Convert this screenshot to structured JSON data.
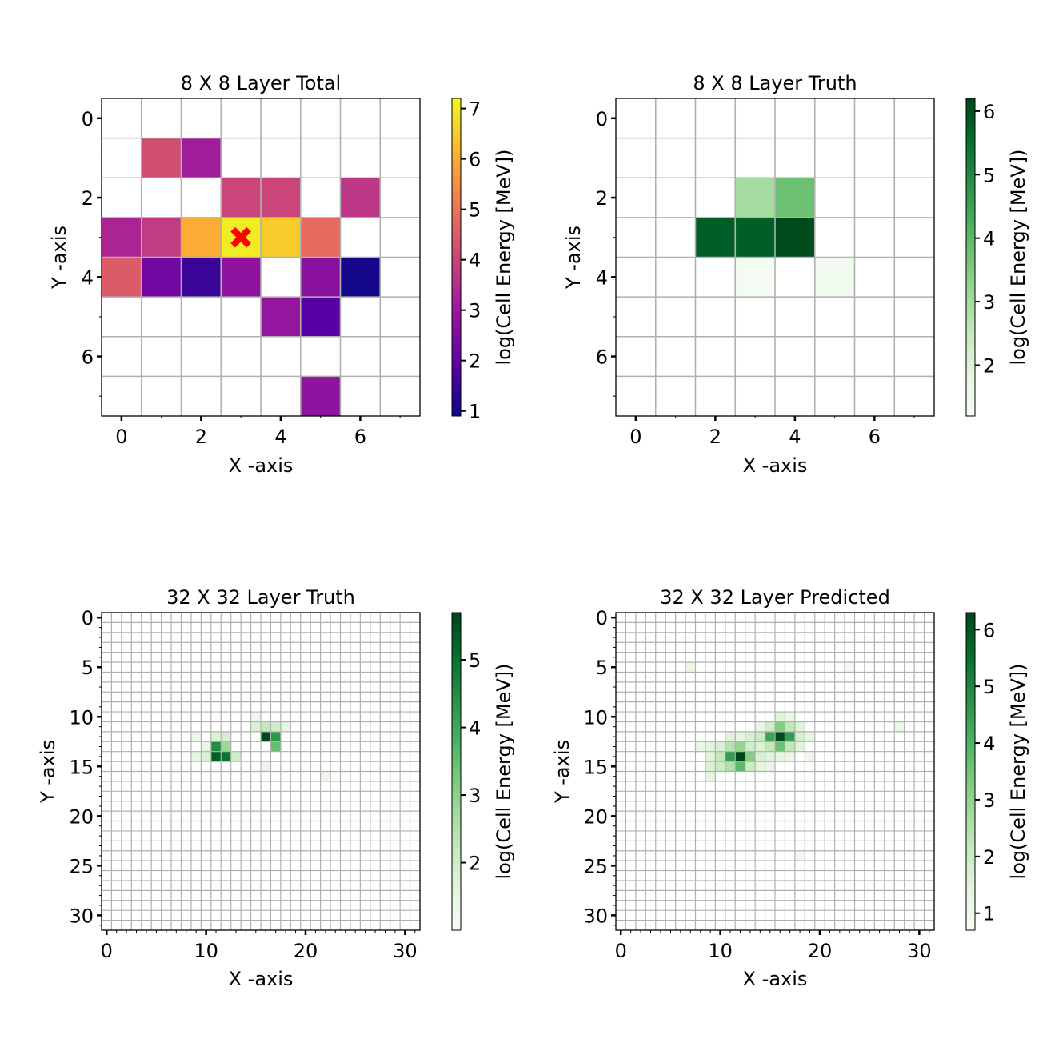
{
  "figure": {
    "colorbar_label": "log(Cell Energy [MeV])"
  },
  "chart_data": [
    {
      "type": "heatmap",
      "title": "8 X 8 Layer Total",
      "xlabel": "X -axis",
      "ylabel": "Y -axis",
      "grid_size": 8,
      "xticks": [
        0,
        2,
        4,
        6
      ],
      "yticks": [
        0,
        2,
        4,
        6
      ],
      "colormap": "plasma",
      "colormap_stops": [
        "#0d0887",
        "#5c01a6",
        "#9c179e",
        "#cc4778",
        "#ed7953",
        "#fdb42f",
        "#f0f921"
      ],
      "colorbar": {
        "min": 0.9,
        "max": 7.2,
        "ticks": [
          1,
          2,
          3,
          4,
          5,
          6,
          7
        ]
      },
      "grid": true,
      "marker": {
        "x": 3,
        "y": 3,
        "symbol": "X",
        "color": "#ff0000"
      },
      "cells": [
        {
          "x": 1,
          "y": 1,
          "value": 4.2
        },
        {
          "x": 2,
          "y": 1,
          "value": 3.1
        },
        {
          "x": 3,
          "y": 2,
          "value": 4.0
        },
        {
          "x": 4,
          "y": 2,
          "value": 4.0
        },
        {
          "x": 6,
          "y": 2,
          "value": 3.7
        },
        {
          "x": 0,
          "y": 3,
          "value": 3.3
        },
        {
          "x": 1,
          "y": 3,
          "value": 3.8
        },
        {
          "x": 2,
          "y": 3,
          "value": 6.0
        },
        {
          "x": 3,
          "y": 3,
          "value": 7.0
        },
        {
          "x": 4,
          "y": 3,
          "value": 6.5
        },
        {
          "x": 5,
          "y": 3,
          "value": 4.8
        },
        {
          "x": 0,
          "y": 4,
          "value": 4.5
        },
        {
          "x": 1,
          "y": 4,
          "value": 2.3
        },
        {
          "x": 2,
          "y": 4,
          "value": 1.5
        },
        {
          "x": 3,
          "y": 4,
          "value": 2.8
        },
        {
          "x": 5,
          "y": 4,
          "value": 2.7
        },
        {
          "x": 6,
          "y": 4,
          "value": 1.0
        },
        {
          "x": 4,
          "y": 5,
          "value": 2.9
        },
        {
          "x": 5,
          "y": 5,
          "value": 1.9
        },
        {
          "x": 5,
          "y": 7,
          "value": 2.8
        }
      ]
    },
    {
      "type": "heatmap",
      "title": "8 X 8 Layer Truth",
      "xlabel": "X -axis",
      "ylabel": "Y -axis",
      "grid_size": 8,
      "xticks": [
        0,
        2,
        4,
        6
      ],
      "yticks": [
        0,
        2,
        4,
        6
      ],
      "colormap": "Greens",
      "colormap_stops": [
        "#f7fcf5",
        "#e5f5e0",
        "#c7e9c0",
        "#a1d99b",
        "#74c476",
        "#41ab5d",
        "#238b45",
        "#006d2c",
        "#00441b"
      ],
      "colorbar": {
        "min": 1.2,
        "max": 6.2,
        "ticks": [
          2,
          3,
          4,
          5,
          6
        ]
      },
      "grid": true,
      "cells": [
        {
          "x": 3,
          "y": 2,
          "value": 3.0
        },
        {
          "x": 4,
          "y": 2,
          "value": 3.8
        },
        {
          "x": 2,
          "y": 3,
          "value": 5.8
        },
        {
          "x": 3,
          "y": 3,
          "value": 5.8
        },
        {
          "x": 4,
          "y": 3,
          "value": 6.1
        },
        {
          "x": 3,
          "y": 4,
          "value": 1.3
        },
        {
          "x": 5,
          "y": 4,
          "value": 1.4
        }
      ]
    },
    {
      "type": "heatmap",
      "title": "32 X 32 Layer Truth",
      "xlabel": "X -axis",
      "ylabel": "Y -axis",
      "grid_size": 32,
      "xticks": [
        0,
        10,
        20,
        30
      ],
      "yticks": [
        0,
        5,
        10,
        15,
        20,
        25,
        30
      ],
      "colormap": "Greens",
      "colormap_stops": [
        "#f7fcf5",
        "#e5f5e0",
        "#c7e9c0",
        "#a1d99b",
        "#74c476",
        "#41ab5d",
        "#238b45",
        "#006d2c",
        "#00441b"
      ],
      "colorbar": {
        "min": 1.0,
        "max": 5.7,
        "ticks": [
          2,
          3,
          4,
          5
        ]
      },
      "grid": true,
      "cells": [
        {
          "x": 15,
          "y": 10,
          "value": 1.3
        },
        {
          "x": 15,
          "y": 11,
          "value": 1.8
        },
        {
          "x": 16,
          "y": 11,
          "value": 2.2
        },
        {
          "x": 17,
          "y": 11,
          "value": 2.0
        },
        {
          "x": 18,
          "y": 11,
          "value": 1.5
        },
        {
          "x": 9,
          "y": 12,
          "value": 1.3
        },
        {
          "x": 11,
          "y": 12,
          "value": 1.8
        },
        {
          "x": 12,
          "y": 12,
          "value": 1.9
        },
        {
          "x": 16,
          "y": 12,
          "value": 5.6
        },
        {
          "x": 17,
          "y": 12,
          "value": 4.3
        },
        {
          "x": 10,
          "y": 13,
          "value": 1.5
        },
        {
          "x": 11,
          "y": 13,
          "value": 4.5
        },
        {
          "x": 12,
          "y": 13,
          "value": 2.8
        },
        {
          "x": 17,
          "y": 13,
          "value": 3.5
        },
        {
          "x": 9,
          "y": 14,
          "value": 1.5
        },
        {
          "x": 10,
          "y": 14,
          "value": 1.8
        },
        {
          "x": 11,
          "y": 14,
          "value": 5.3
        },
        {
          "x": 12,
          "y": 14,
          "value": 5.0
        },
        {
          "x": 13,
          "y": 14,
          "value": 2.0
        },
        {
          "x": 16,
          "y": 15,
          "value": 1.4
        },
        {
          "x": 22,
          "y": 16,
          "value": 1.3
        }
      ]
    },
    {
      "type": "heatmap",
      "title": "32 X 32 Layer Predicted",
      "xlabel": "X -axis",
      "ylabel": "Y -axis",
      "grid_size": 32,
      "xticks": [
        0,
        10,
        20,
        30
      ],
      "yticks": [
        0,
        5,
        10,
        15,
        20,
        25,
        30
      ],
      "colormap": "Greens",
      "colormap_stops": [
        "#f7fcf5",
        "#e5f5e0",
        "#c7e9c0",
        "#a1d99b",
        "#74c476",
        "#41ab5d",
        "#238b45",
        "#006d2c",
        "#00441b"
      ],
      "colorbar": {
        "min": 0.7,
        "max": 6.3,
        "ticks": [
          1,
          2,
          3,
          4,
          5,
          6
        ]
      },
      "grid": true,
      "cells": [
        {
          "x": 7,
          "y": 5,
          "value": 1.2
        },
        {
          "x": 23,
          "y": 5,
          "value": 0.9
        },
        {
          "x": 16,
          "y": 10,
          "value": 1.5
        },
        {
          "x": 17,
          "y": 10,
          "value": 1.2
        },
        {
          "x": 14,
          "y": 11,
          "value": 1.3
        },
        {
          "x": 15,
          "y": 11,
          "value": 1.9
        },
        {
          "x": 16,
          "y": 11,
          "value": 3.2
        },
        {
          "x": 17,
          "y": 11,
          "value": 2.2
        },
        {
          "x": 18,
          "y": 11,
          "value": 1.5
        },
        {
          "x": 28,
          "y": 11,
          "value": 1.2
        },
        {
          "x": 11,
          "y": 12,
          "value": 1.5
        },
        {
          "x": 12,
          "y": 12,
          "value": 1.4
        },
        {
          "x": 13,
          "y": 12,
          "value": 1.7
        },
        {
          "x": 14,
          "y": 12,
          "value": 2.0
        },
        {
          "x": 15,
          "y": 12,
          "value": 4.3
        },
        {
          "x": 16,
          "y": 12,
          "value": 6.2
        },
        {
          "x": 17,
          "y": 12,
          "value": 4.5
        },
        {
          "x": 18,
          "y": 12,
          "value": 1.8
        },
        {
          "x": 19,
          "y": 12,
          "value": 1.3
        },
        {
          "x": 8,
          "y": 13,
          "value": 1.2
        },
        {
          "x": 9,
          "y": 13,
          "value": 1.4
        },
        {
          "x": 10,
          "y": 13,
          "value": 1.7
        },
        {
          "x": 11,
          "y": 13,
          "value": 2.4
        },
        {
          "x": 12,
          "y": 13,
          "value": 3.0
        },
        {
          "x": 13,
          "y": 13,
          "value": 1.9
        },
        {
          "x": 14,
          "y": 13,
          "value": 1.6
        },
        {
          "x": 15,
          "y": 13,
          "value": 2.2
        },
        {
          "x": 16,
          "y": 13,
          "value": 3.6
        },
        {
          "x": 17,
          "y": 13,
          "value": 2.2
        },
        {
          "x": 18,
          "y": 13,
          "value": 1.5
        },
        {
          "x": 9,
          "y": 14,
          "value": 1.5
        },
        {
          "x": 10,
          "y": 14,
          "value": 2.2
        },
        {
          "x": 11,
          "y": 14,
          "value": 4.5
        },
        {
          "x": 12,
          "y": 14,
          "value": 6.3
        },
        {
          "x": 13,
          "y": 14,
          "value": 3.2
        },
        {
          "x": 14,
          "y": 14,
          "value": 1.7
        },
        {
          "x": 15,
          "y": 14,
          "value": 1.5
        },
        {
          "x": 16,
          "y": 14,
          "value": 1.4
        },
        {
          "x": 17,
          "y": 14,
          "value": 1.2
        },
        {
          "x": 19,
          "y": 14,
          "value": 1.1
        },
        {
          "x": 9,
          "y": 15,
          "value": 1.6
        },
        {
          "x": 10,
          "y": 15,
          "value": 2.0
        },
        {
          "x": 11,
          "y": 15,
          "value": 2.5
        },
        {
          "x": 12,
          "y": 15,
          "value": 3.8
        },
        {
          "x": 13,
          "y": 15,
          "value": 2.0
        },
        {
          "x": 14,
          "y": 15,
          "value": 1.4
        },
        {
          "x": 15,
          "y": 15,
          "value": 1.2
        },
        {
          "x": 9,
          "y": 16,
          "value": 1.4
        },
        {
          "x": 18,
          "y": 24,
          "value": 1.0
        }
      ]
    }
  ]
}
